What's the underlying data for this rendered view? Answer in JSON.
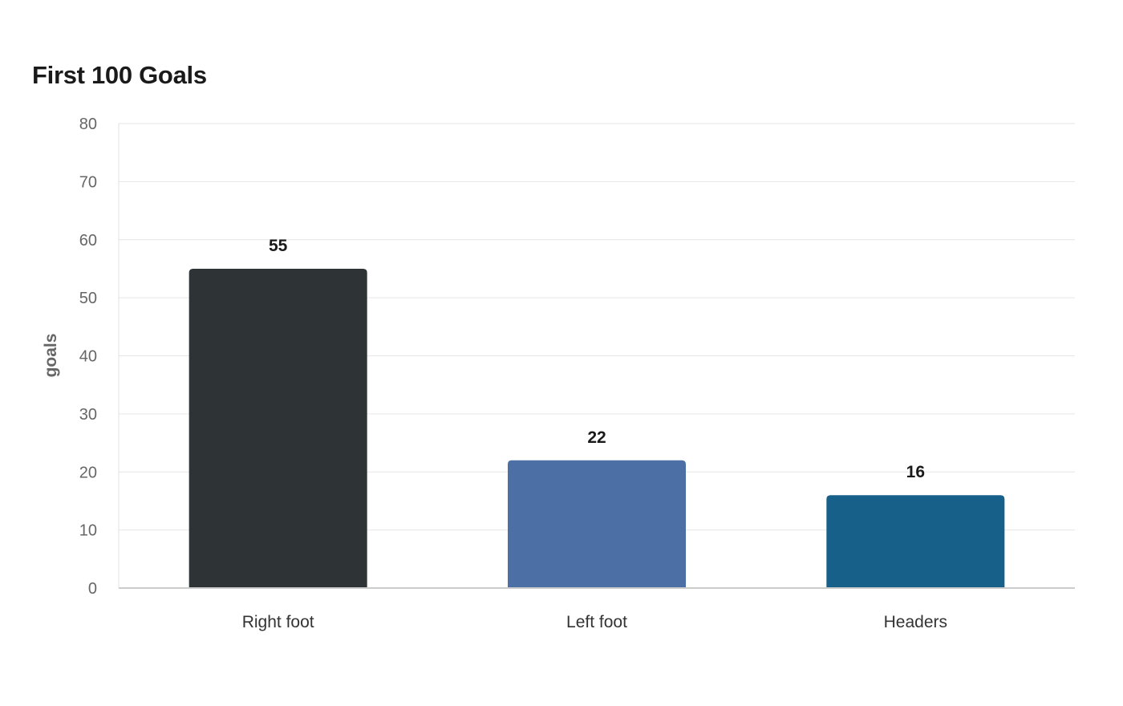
{
  "chart_data": {
    "type": "bar",
    "title": "First 100 Goals",
    "xlabel": "",
    "ylabel": "goals",
    "categories": [
      "Right foot",
      "Left foot",
      "Headers"
    ],
    "values": [
      55,
      22,
      16
    ],
    "data_labels": [
      "55",
      "22",
      "16"
    ],
    "ylim": [
      0,
      80
    ],
    "yticks": [
      0,
      10,
      20,
      30,
      40,
      50,
      60,
      70,
      80
    ],
    "bar_colors": [
      "#2e3436",
      "#4c6fa5",
      "#17608a"
    ],
    "grid": true,
    "legend": "none"
  }
}
